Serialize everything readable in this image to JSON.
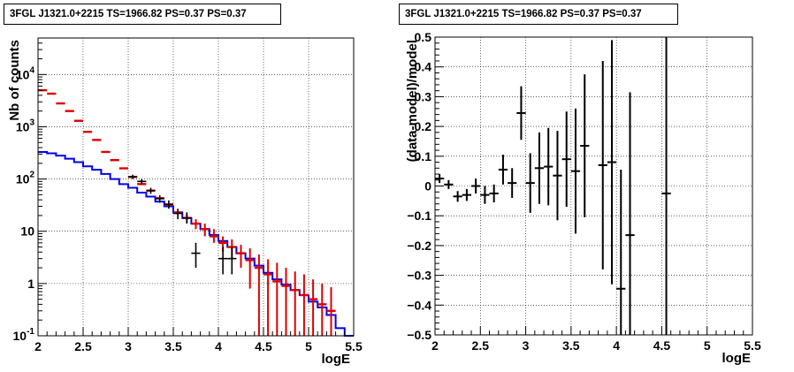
{
  "chart_data": [
    {
      "type": "histogram",
      "title": "3FGL J1321.0+2215 TS=1966.82 PS=0.37 PS=0.37",
      "xlabel": "logE",
      "ylabel": "Nb of counts",
      "xlim": [
        2,
        5.5
      ],
      "ylim": [
        0.1,
        50000
      ],
      "yscale": "log",
      "grid": true,
      "x_ticks": [
        "2",
        "2.5",
        "3",
        "3.5",
        "4",
        "4.5",
        "5",
        "5.5"
      ],
      "y_ticks": [
        {
          "value": 0.1,
          "label": "10",
          "exp": "-1"
        },
        {
          "value": 1,
          "label": "1",
          "exp": ""
        },
        {
          "value": 10,
          "label": "10",
          "exp": ""
        },
        {
          "value": 100,
          "label": "10",
          "exp": "2"
        },
        {
          "value": 1000,
          "label": "10",
          "exp": "3"
        },
        {
          "value": 10000,
          "label": "10",
          "exp": "4"
        }
      ],
      "bin_edges": [
        2.0,
        2.1,
        2.2,
        2.3,
        2.4,
        2.5,
        2.6,
        2.7,
        2.8,
        2.9,
        3.0,
        3.1,
        3.2,
        3.3,
        3.4,
        3.5,
        3.6,
        3.7,
        3.8,
        3.9,
        4.0,
        4.1,
        4.2,
        4.3,
        4.4,
        4.5,
        4.6,
        4.7,
        4.8,
        4.9,
        5.0,
        5.1,
        5.2,
        5.3,
        5.4,
        5.5
      ],
      "series": [
        {
          "kind": "model-step",
          "color": "#0000ee",
          "values": [
            330,
            310,
            280,
            245,
            210,
            175,
            150,
            125,
            100,
            80,
            68,
            55,
            46,
            37,
            30,
            23,
            18,
            14,
            11,
            8.5,
            6.5,
            5.0,
            3.8,
            3.0,
            2.2,
            1.6,
            1.2,
            0.95,
            0.75,
            0.6,
            0.45,
            0.35,
            0.25,
            0.14,
            0.1
          ]
        },
        {
          "kind": "model-points",
          "color": "#dd0000",
          "x": [
            2.05,
            2.15,
            2.25,
            2.35,
            2.45,
            2.55,
            2.65,
            2.75,
            2.85,
            2.95,
            3.05,
            3.15,
            3.25,
            3.35,
            3.45,
            3.55,
            3.65,
            3.75,
            3.85,
            3.95,
            4.05,
            4.15,
            4.25,
            4.35,
            4.45,
            4.55,
            4.65,
            4.75,
            4.85,
            4.95,
            5.05,
            5.15,
            5.25
          ],
          "y": [
            5000,
            4300,
            2800,
            2000,
            1300,
            800,
            560,
            330,
            230,
            160,
            110,
            80,
            60,
            43,
            32,
            23,
            18,
            14,
            11,
            8,
            6,
            5,
            3.8,
            2.8,
            2,
            1.5,
            1.1,
            0.9,
            0.75,
            0.6,
            0.5,
            0.4,
            0.3
          ],
          "err_low": [
            null,
            null,
            null,
            null,
            null,
            null,
            null,
            null,
            null,
            null,
            null,
            null,
            null,
            null,
            null,
            null,
            15,
            11,
            8,
            6,
            4,
            3,
            2,
            0.8,
            0.1,
            0.1,
            0.1,
            0.1,
            0.1,
            0.1,
            0.1,
            0.1,
            0.1
          ],
          "err_high": [
            null,
            null,
            null,
            null,
            null,
            null,
            null,
            null,
            null,
            null,
            null,
            null,
            null,
            null,
            null,
            null,
            21,
            17,
            14,
            11,
            8,
            7,
            5.5,
            4.7,
            3.6,
            2.9,
            2.5,
            2.0,
            1.7,
            1.5,
            1.2,
            1.0,
            0.85
          ]
        },
        {
          "kind": "data-points",
          "color": "#000000",
          "x": [
            3.05,
            3.15,
            3.25,
            3.35,
            3.45,
            3.55,
            3.65,
            3.75,
            4.05,
            4.15
          ],
          "y": [
            110,
            90,
            60,
            42,
            33,
            22,
            18,
            3.8,
            3,
            3
          ],
          "err_low": [
            100,
            80,
            52,
            35,
            27,
            17,
            14,
            2,
            1.5,
            1.5
          ],
          "err_high": [
            121,
            100,
            68,
            49,
            39,
            27,
            23,
            6,
            5,
            5
          ]
        }
      ]
    },
    {
      "type": "scatter",
      "title": "3FGL J1321.0+2215 TS=1966.82 PS=0.37 PS=0.37",
      "xlabel": "logE",
      "ylabel": "(data-model)/model",
      "xlim": [
        2,
        5.5
      ],
      "ylim": [
        -0.5,
        0.5
      ],
      "grid": true,
      "x_ticks": [
        "2",
        "2.5",
        "3",
        "3.5",
        "4",
        "4.5",
        "5",
        "5.5"
      ],
      "y_ticks": [
        "-0.5",
        "-0.4",
        "-0.3",
        "-0.2",
        "-0.1",
        "0",
        "0.1",
        "0.2",
        "0.3",
        "0.4",
        "0.5"
      ],
      "points": {
        "x": [
          2.05,
          2.15,
          2.25,
          2.35,
          2.45,
          2.55,
          2.65,
          2.75,
          2.85,
          2.95,
          3.05,
          3.15,
          3.25,
          3.35,
          3.45,
          3.55,
          3.65,
          3.85,
          3.95,
          4.05,
          4.15,
          4.55
        ],
        "y": [
          0.025,
          0.005,
          -0.035,
          -0.03,
          0.0,
          -0.03,
          -0.025,
          0.055,
          0.01,
          0.245,
          0.01,
          0.06,
          0.065,
          0.035,
          0.09,
          0.05,
          0.135,
          0.07,
          0.08,
          -0.345,
          -0.165,
          -0.025
        ],
        "err": [
          0.015,
          0.015,
          0.018,
          0.02,
          0.025,
          0.03,
          0.03,
          0.05,
          0.05,
          0.09,
          0.1,
          0.12,
          0.13,
          0.15,
          0.16,
          0.21,
          0.24,
          0.35,
          0.41,
          0.4,
          0.48,
          0.6
        ]
      }
    }
  ]
}
